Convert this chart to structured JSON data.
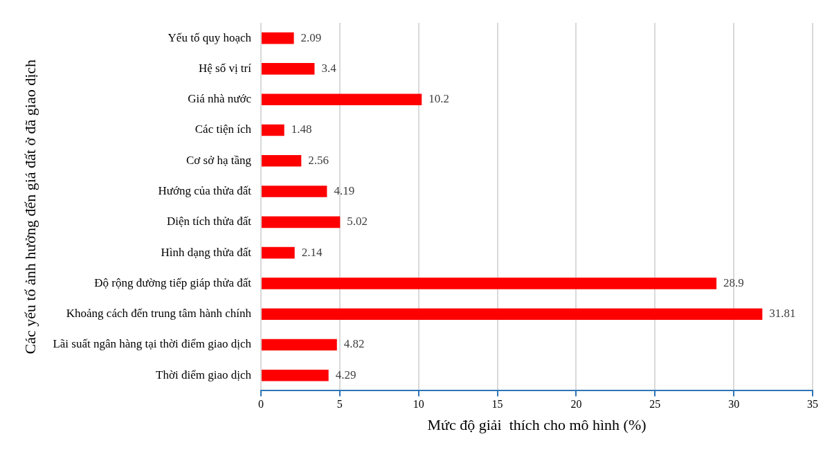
{
  "chart_data": {
    "type": "bar",
    "orientation": "horizontal",
    "xlabel": "Mức độ giải  thích cho mô hình (%)",
    "ylabel": "Các yếu tố ảnh hưởng đến giá đất ở đã giao dịch",
    "categories": [
      "Yếu tố quy hoạch",
      "Hệ số vị trí",
      "Giá nhà nước",
      "Các tiện ích",
      "Cơ sở hạ tầng",
      "Hướng của thửa đất",
      "Diện tích thửa đất",
      "Hình dạng thửa đất",
      "Độ rộng đường tiếp giáp thửa đất",
      "Khoảng cách đến trung tâm hành chính",
      "Lãi suất ngân hàng tại thời điểm giao dịch",
      "Thời điểm giao dịch"
    ],
    "values": [
      2.09,
      3.4,
      10.2,
      1.48,
      2.56,
      4.19,
      5.02,
      2.14,
      28.9,
      31.81,
      4.82,
      4.29
    ],
    "color": "#ff0000",
    "data_labels": true,
    "grid": "x",
    "legend": false,
    "xlim": [
      0,
      35
    ],
    "xticks": [
      0,
      5,
      10,
      15,
      20,
      25,
      30,
      35
    ]
  }
}
